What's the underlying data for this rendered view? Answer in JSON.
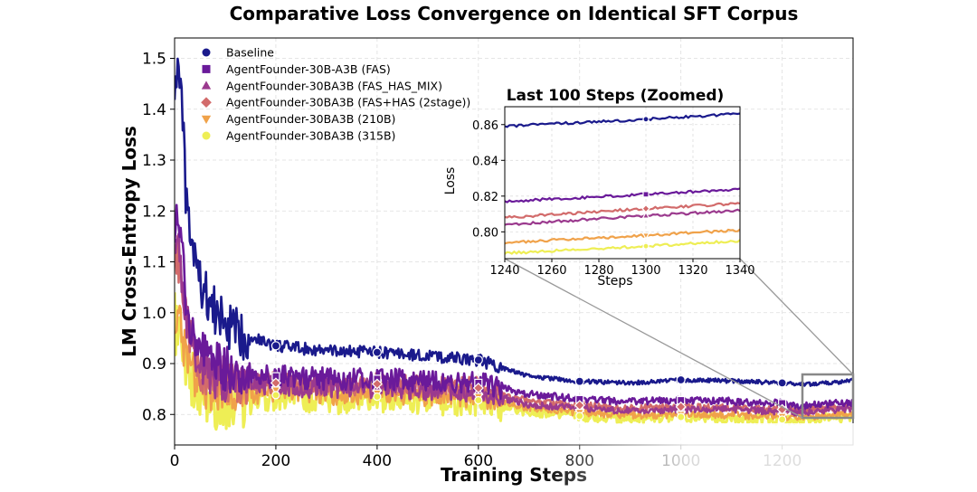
{
  "chart_data": {
    "type": "line",
    "title": "Comparative Loss Convergence on Identical SFT Corpus",
    "xlabel": "Training Steps",
    "ylabel": "LM Cross-Entropy Loss",
    "xlim": [
      0,
      1340
    ],
    "ylim": [
      0.74,
      1.54
    ],
    "xticks": [
      0,
      200,
      400,
      600,
      800,
      1000,
      1200
    ],
    "yticks": [
      0.8,
      0.9,
      1.0,
      1.1,
      1.2,
      1.3,
      1.4,
      1.5
    ],
    "grid": true,
    "legend_position": "top-left",
    "series": [
      {
        "name": "Baseline",
        "color": "#1a1a8c",
        "marker": "circle",
        "x": [
          0,
          10,
          25,
          50,
          80,
          120,
          160,
          200,
          300,
          400,
          500,
          600,
          700,
          800,
          900,
          1000,
          1100,
          1200,
          1240,
          1300,
          1340
        ],
        "y": [
          1.45,
          1.49,
          1.18,
          1.06,
          1.0,
          0.96,
          0.95,
          0.935,
          0.925,
          0.922,
          0.915,
          0.907,
          0.875,
          0.865,
          0.862,
          0.868,
          0.866,
          0.862,
          0.859,
          0.863,
          0.866
        ]
      },
      {
        "name": "AgentFounder-30B-A3B (FAS)",
        "color": "#6a1a9a",
        "marker": "square",
        "x": [
          0,
          10,
          25,
          50,
          80,
          120,
          160,
          200,
          300,
          400,
          500,
          600,
          700,
          800,
          900,
          1000,
          1100,
          1200,
          1240,
          1300,
          1340
        ],
        "y": [
          1.18,
          1.16,
          1.0,
          0.93,
          0.9,
          0.88,
          0.875,
          0.875,
          0.87,
          0.87,
          0.865,
          0.862,
          0.84,
          0.83,
          0.825,
          0.828,
          0.826,
          0.822,
          0.817,
          0.821,
          0.824
        ]
      },
      {
        "name": "AgentFounder-30BA3B (FAS_HAS_MIX)",
        "color": "#9b3a8e",
        "marker": "triangle-up",
        "x": [
          0,
          10,
          25,
          50,
          80,
          120,
          160,
          200,
          300,
          400,
          500,
          600,
          700,
          800,
          900,
          1000,
          1100,
          1200,
          1240,
          1300,
          1340
        ],
        "y": [
          1.14,
          1.12,
          0.97,
          0.9,
          0.875,
          0.86,
          0.858,
          0.858,
          0.852,
          0.852,
          0.848,
          0.845,
          0.82,
          0.812,
          0.808,
          0.81,
          0.81,
          0.806,
          0.804,
          0.809,
          0.812
        ]
      },
      {
        "name": "AgentFounder-30BA3B (FAS+HAS (2stage))",
        "color": "#d26b6b",
        "marker": "diamond",
        "x": [
          0,
          10,
          25,
          50,
          80,
          120,
          160,
          200,
          300,
          400,
          500,
          600,
          700,
          800,
          900,
          1000,
          1100,
          1200,
          1240,
          1300,
          1340
        ],
        "y": [
          1.12,
          1.1,
          0.96,
          0.89,
          0.87,
          0.86,
          0.862,
          0.862,
          0.858,
          0.86,
          0.855,
          0.852,
          0.827,
          0.818,
          0.812,
          0.815,
          0.813,
          0.81,
          0.808,
          0.813,
          0.816
        ]
      },
      {
        "name": "AgentFounder-30BA3B (210B)",
        "color": "#f0a24a",
        "marker": "triangle-down",
        "x": [
          0,
          10,
          25,
          50,
          80,
          120,
          160,
          200,
          300,
          400,
          500,
          600,
          700,
          800,
          900,
          1000,
          1100,
          1200,
          1240,
          1300,
          1340
        ],
        "y": [
          1.0,
          0.98,
          0.9,
          0.86,
          0.85,
          0.845,
          0.842,
          0.848,
          0.84,
          0.842,
          0.838,
          0.835,
          0.812,
          0.804,
          0.798,
          0.8,
          0.799,
          0.796,
          0.794,
          0.798,
          0.801
        ]
      },
      {
        "name": "AgentFounder-30BA3B (315B)",
        "color": "#eeee55",
        "marker": "circle",
        "x": [
          0,
          10,
          25,
          50,
          80,
          120,
          160,
          200,
          300,
          400,
          500,
          600,
          700,
          800,
          900,
          1000,
          1100,
          1200,
          1240,
          1300,
          1340
        ],
        "y": [
          0.98,
          0.96,
          0.88,
          0.84,
          0.83,
          0.828,
          0.83,
          0.838,
          0.83,
          0.835,
          0.83,
          0.828,
          0.805,
          0.797,
          0.792,
          0.795,
          0.794,
          0.79,
          0.788,
          0.792,
          0.795
        ]
      }
    ],
    "inset": {
      "title": "Last 100 Steps (Zoomed)",
      "xlabel": "Steps",
      "ylabel": "Loss",
      "xlim": [
        1240,
        1340
      ],
      "ylim": [
        0.785,
        0.87
      ],
      "xticks": [
        1240,
        1260,
        1280,
        1300,
        1320,
        1340
      ],
      "yticks": [
        0.8,
        0.82,
        0.84,
        0.86
      ]
    }
  }
}
